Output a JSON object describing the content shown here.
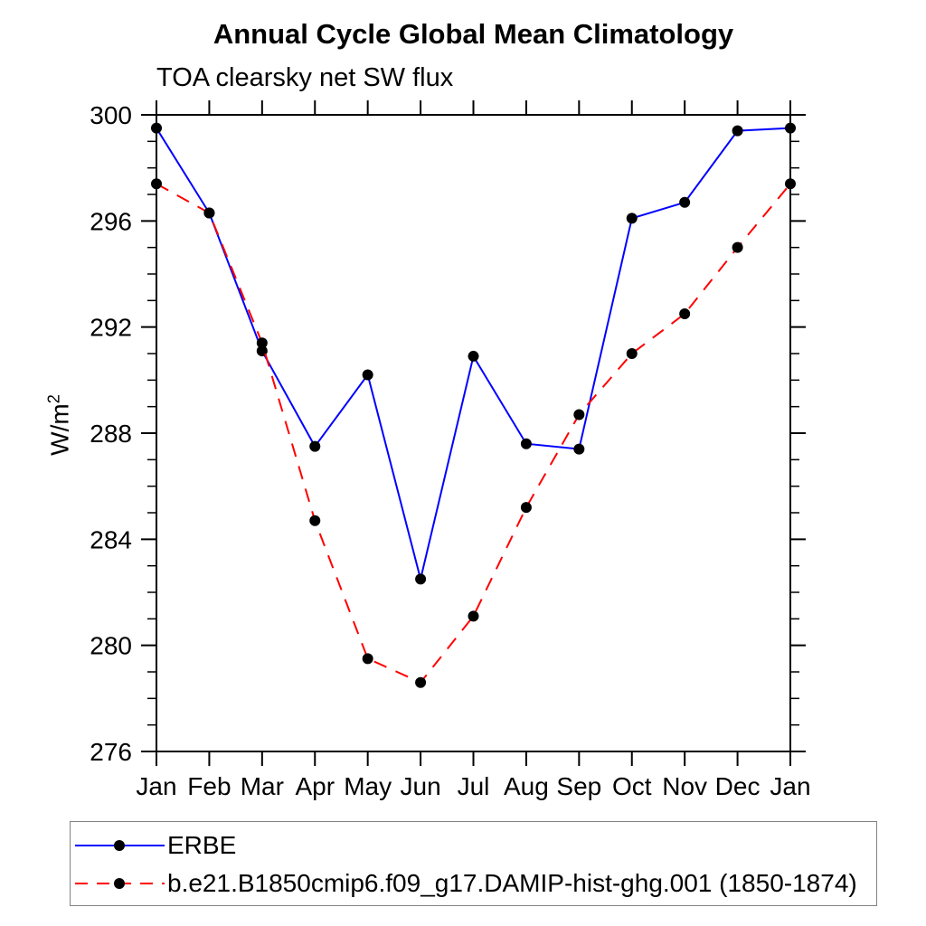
{
  "page": {
    "background": "#ffffff"
  },
  "chart_data": {
    "type": "line",
    "title": "Annual Cycle Global Mean Climatology",
    "subtitle": "TOA clearsky net SW flux",
    "ylabel_base": "W/m",
    "ylabel_sup": "2",
    "categories": [
      "Jan",
      "Feb",
      "Mar",
      "Apr",
      "May",
      "Jun",
      "Jul",
      "Aug",
      "Sep",
      "Oct",
      "Nov",
      "Dec",
      "Jan"
    ],
    "ylim": [
      276,
      300
    ],
    "yticks": [
      276,
      280,
      284,
      288,
      292,
      296,
      300
    ],
    "yminor_step": 1,
    "grid": false,
    "legend_position": "bottom",
    "axis_color": "#000000",
    "marker_color": "#000000",
    "marker_shape": "filled-circle",
    "series": [
      {
        "name": "ERBE",
        "color": "#0000ff",
        "line_style": "solid",
        "values": [
          299.5,
          296.3,
          291.1,
          287.5,
          290.2,
          282.5,
          290.9,
          287.6,
          287.4,
          296.1,
          296.7,
          299.4,
          299.5
        ]
      },
      {
        "name": "b.e21.B1850cmip6.f09_g17.DAMIP-hist-ghg.001 (1850-1874)",
        "color": "#ff0000",
        "line_style": "dashed",
        "values": [
          297.4,
          296.3,
          291.4,
          284.7,
          279.5,
          278.6,
          281.1,
          285.2,
          288.7,
          291.0,
          292.5,
          295.0,
          297.4
        ]
      }
    ]
  }
}
